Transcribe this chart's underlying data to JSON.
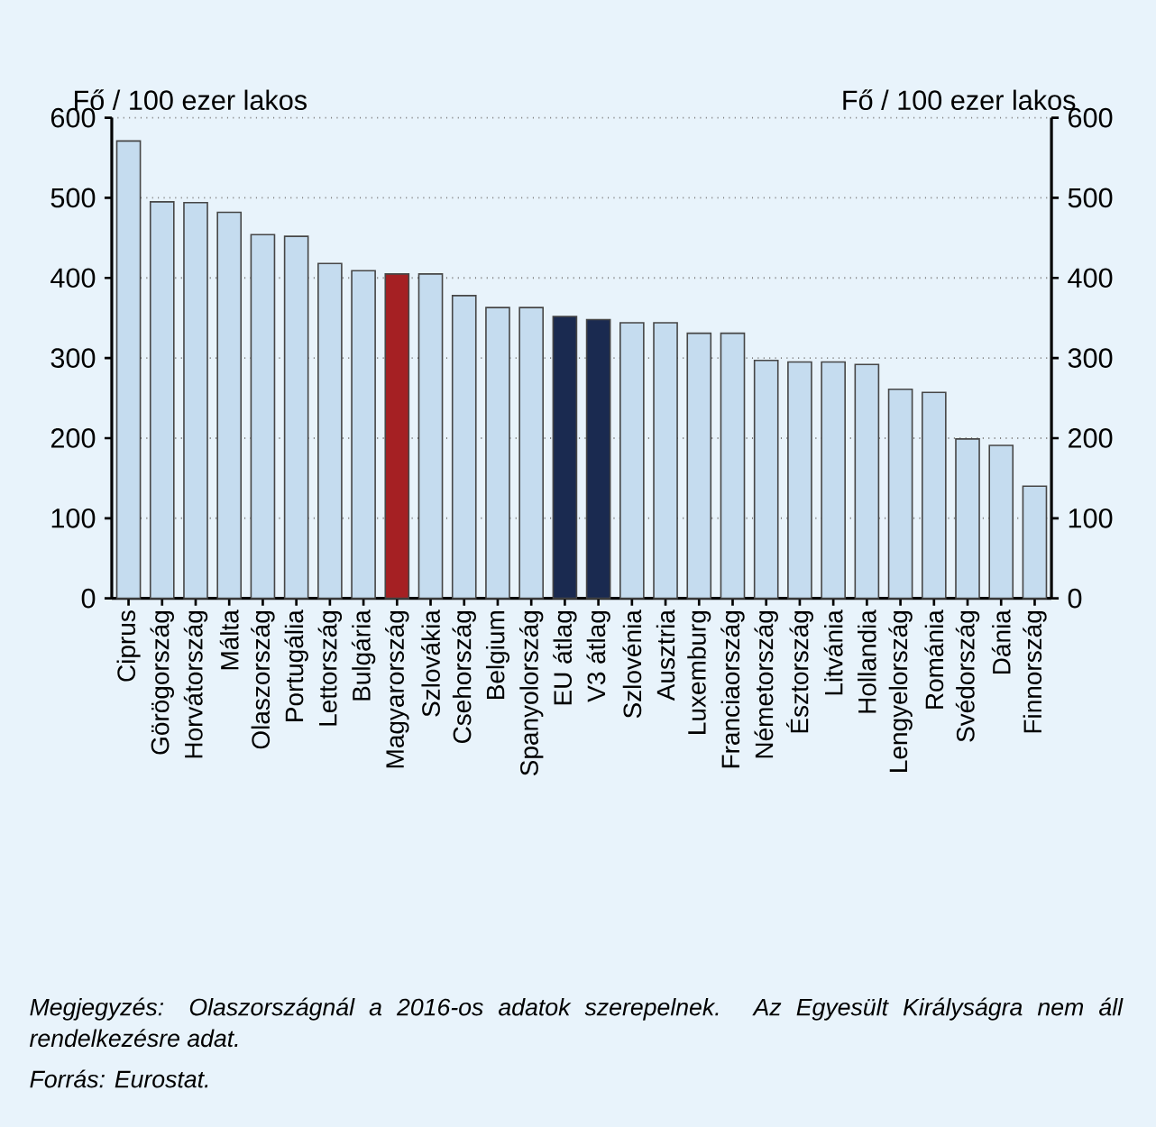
{
  "chart_data": {
    "type": "bar",
    "categories": [
      "Ciprus",
      "Görögország",
      "Horvátország",
      "Málta",
      "Olaszország",
      "Portugália",
      "Lettország",
      "Bulgária",
      "Magyarország",
      "Szlovákia",
      "Csehország",
      "Belgium",
      "Spanyolország",
      "EU átlag",
      "V3 átlag",
      "Szlovénia",
      "Ausztria",
      "Luxemburg",
      "Franciaország",
      "Németország",
      "Észtország",
      "Litvánia",
      "Hollandia",
      "Lengyelország",
      "Románia",
      "Svédország",
      "Dánia",
      "Finnország"
    ],
    "values": [
      571,
      495,
      494,
      482,
      454,
      452,
      418,
      409,
      405,
      405,
      378,
      363,
      363,
      352,
      348,
      344,
      344,
      331,
      331,
      297,
      295,
      295,
      292,
      261,
      257,
      199,
      191,
      140
    ],
    "colors": [
      "#c5dcef",
      "#c5dcef",
      "#c5dcef",
      "#c5dcef",
      "#c5dcef",
      "#c5dcef",
      "#c5dcef",
      "#c5dcef",
      "#a52023",
      "#c5dcef",
      "#c5dcef",
      "#c5dcef",
      "#c5dcef",
      "#1a2a50",
      "#1a2a50",
      "#c5dcef",
      "#c5dcef",
      "#c5dcef",
      "#c5dcef",
      "#c5dcef",
      "#c5dcef",
      "#c5dcef",
      "#c5dcef",
      "#c5dcef",
      "#c5dcef",
      "#c5dcef",
      "#c5dcef",
      "#c5dcef"
    ],
    "ylim": [
      0,
      600
    ],
    "yticks": [
      0,
      100,
      200,
      300,
      400,
      500,
      600
    ],
    "y2lim": [
      0,
      600
    ],
    "y2ticks": [
      0,
      100,
      200,
      300,
      400,
      500,
      600
    ],
    "grid": "y",
    "annotations": [
      "Fő / 100 ezer lakos",
      "Fő / 100 ezer lakos",
      "Megjegyzés: Olaszországnál a 2016-os adatok szerepelnek. Az Egyesült Királyságra nem áll rendelkezésre adat.",
      "Forrás: Eurostat."
    ]
  }
}
